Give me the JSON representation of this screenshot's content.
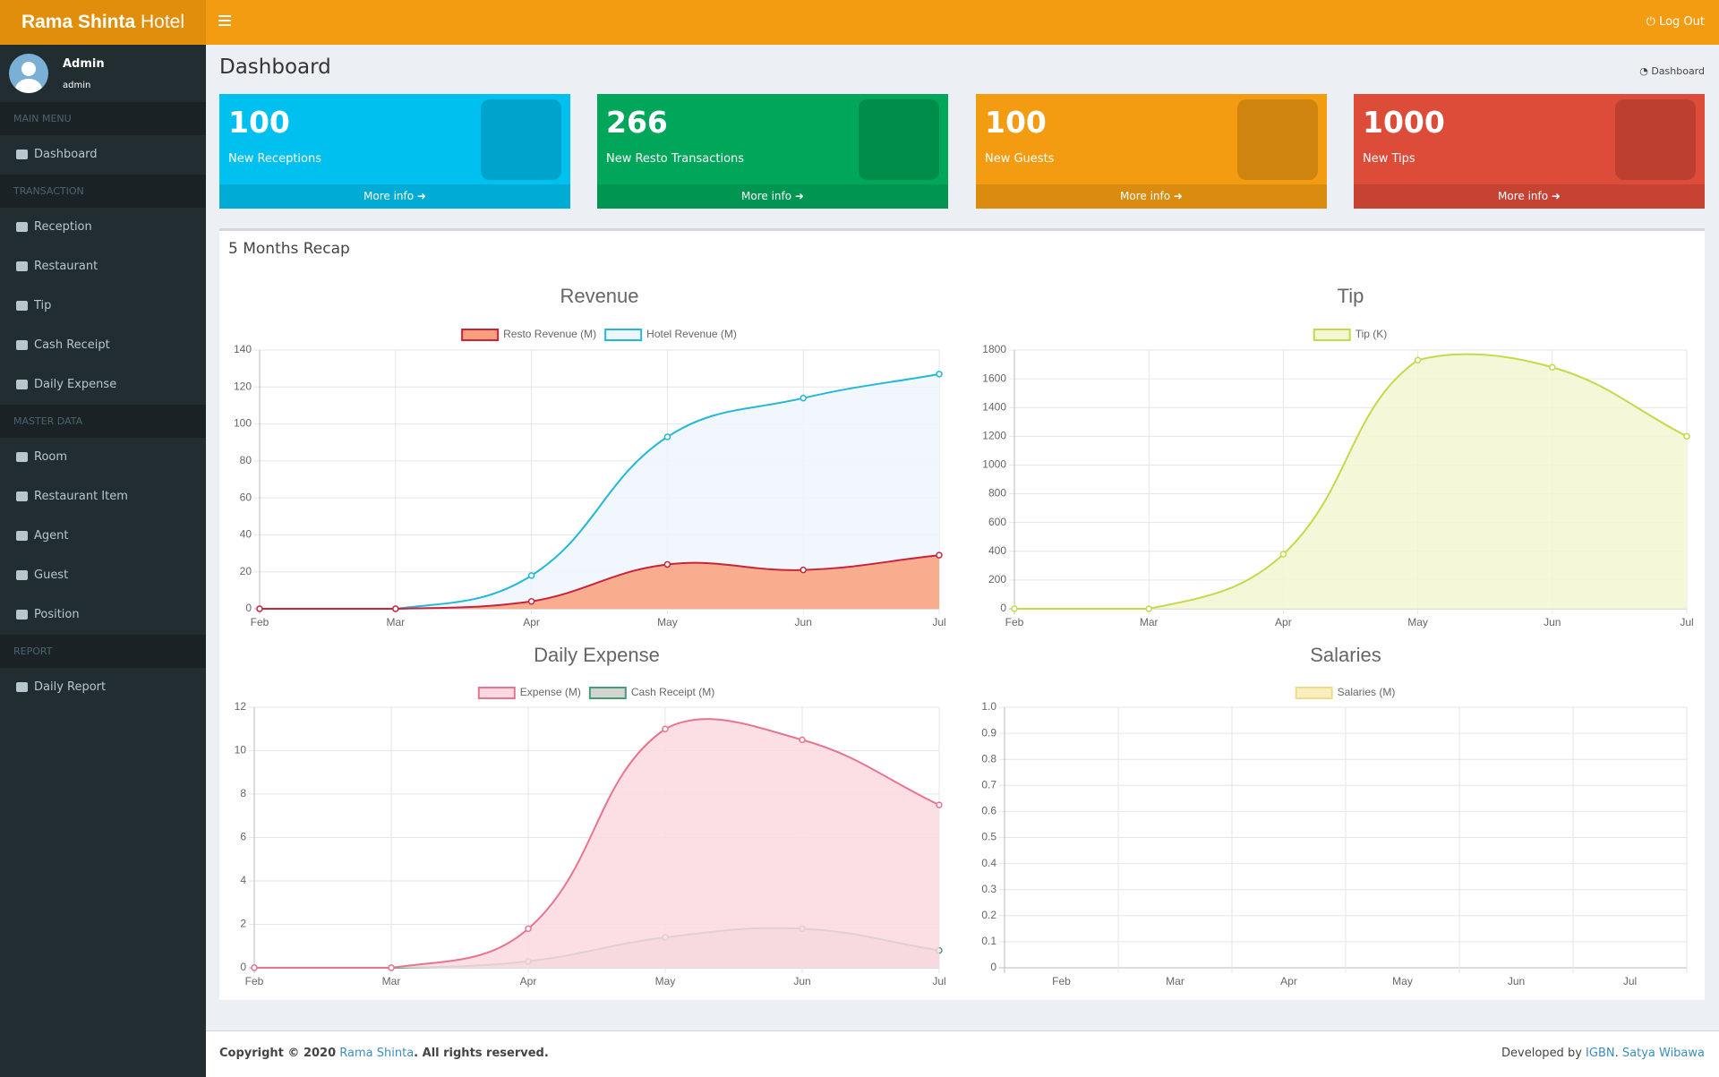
{
  "header": {
    "brand_bold": "Rama Shinta",
    "brand_rest": "Hotel",
    "logout": "Log Out"
  },
  "sidebar": {
    "user_name": "Admin",
    "user_role": "admin",
    "menu": [
      {
        "section": "MAIN MENU",
        "items": [
          "Dashboard"
        ]
      },
      {
        "section": "TRANSACTION",
        "items": [
          "Reception",
          "Restaurant",
          "Tip",
          "Cash Receipt",
          "Daily Expense"
        ]
      },
      {
        "section": "MASTER DATA",
        "items": [
          "Room",
          "Restaurant Item",
          "Agent",
          "Guest",
          "Position"
        ]
      },
      {
        "section": "REPORT",
        "items": [
          "Daily Report"
        ]
      }
    ]
  },
  "content": {
    "title": "Dashboard",
    "breadcrumb": "Dashboard"
  },
  "info_boxes": [
    {
      "value": "100",
      "label": "New Receptions",
      "more": "More info",
      "color": "#00c0ef"
    },
    {
      "value": "266",
      "label": "New Resto Transactions",
      "more": "More info",
      "color": "#00a65a"
    },
    {
      "value": "100",
      "label": "New Guests",
      "more": "More info",
      "color": "#f39c12"
    },
    {
      "value": "1000",
      "label": "New Tips",
      "more": "More info",
      "color": "#dd4b39"
    }
  ],
  "recap": {
    "title": "5 Months Recap"
  },
  "chart_data": [
    {
      "type": "line",
      "title": "Revenue",
      "categories": [
        "Feb",
        "Mar",
        "Apr",
        "May",
        "Jun",
        "Jul"
      ],
      "series": [
        {
          "name": "Resto Revenue (M)",
          "color": "#c8243c",
          "fill_color": "#f9a07b",
          "values": [
            0,
            0,
            4,
            24,
            21,
            29
          ]
        },
        {
          "name": "Hotel Revenue (M)",
          "color": "#22b8d8",
          "fill_color": "#eef6fc",
          "values": [
            0,
            0,
            18,
            93,
            114,
            127
          ]
        }
      ],
      "ylim": [
        0,
        140
      ],
      "yticks": [
        0,
        20,
        40,
        60,
        80,
        100,
        120,
        140
      ],
      "grid": true
    },
    {
      "type": "line",
      "title": "Tip",
      "categories": [
        "Feb",
        "Mar",
        "Apr",
        "May",
        "Jun",
        "Jul"
      ],
      "series": [
        {
          "name": "Tip (K)",
          "color": "#c5d94a",
          "fill_color": "#f3f6d2",
          "values": [
            0,
            0,
            380,
            1730,
            1680,
            1200
          ]
        }
      ],
      "ylim": [
        0,
        1800
      ],
      "yticks": [
        0,
        200,
        400,
        600,
        800,
        1000,
        1200,
        1400,
        1600,
        1800
      ],
      "grid": true
    },
    {
      "type": "line",
      "title": "Daily Expense",
      "categories": [
        "Feb",
        "Mar",
        "Apr",
        "May",
        "Jun",
        "Jul"
      ],
      "series": [
        {
          "name": "Expense (M)",
          "color": "#e8758f",
          "fill_color": "#fcd9e0",
          "values": [
            0,
            0,
            1.8,
            11,
            10.5,
            7.5
          ]
        },
        {
          "name": "Cash Receipt (M)",
          "color": "#4a9a7c",
          "fill_color": "#d3d5d1",
          "values": [
            0,
            0,
            0.3,
            1.4,
            1.8,
            0.8
          ]
        }
      ],
      "ylim": [
        0,
        12
      ],
      "yticks": [
        0,
        2,
        4,
        6,
        8,
        10,
        12
      ],
      "grid": true
    },
    {
      "type": "line",
      "title": "Salaries",
      "categories": [
        "Feb",
        "Mar",
        "Apr",
        "May",
        "Jun",
        "Jul"
      ],
      "series": [
        {
          "name": "Salaries (M)",
          "color": "#eedd88",
          "fill_color": "#f8eec0",
          "values": [
            null,
            null,
            null,
            null,
            null,
            null
          ]
        }
      ],
      "ylim": [
        0,
        1
      ],
      "yticks": [
        0,
        0.1,
        0.2,
        0.3,
        0.4,
        0.5,
        0.6,
        0.7,
        0.8,
        0.9,
        {
          "value": 1,
          "label": "1.0"
        }
      ],
      "grid": true,
      "offset": true
    }
  ],
  "footer": {
    "copyright": "Copyright © 2020",
    "owner": "Rama Shinta",
    "rights": ". All rights reserved.",
    "dev_prefix": "Developed by",
    "dev1": "IGBN",
    "dev_sep": ".",
    "dev2": "Satya Wibawa"
  }
}
